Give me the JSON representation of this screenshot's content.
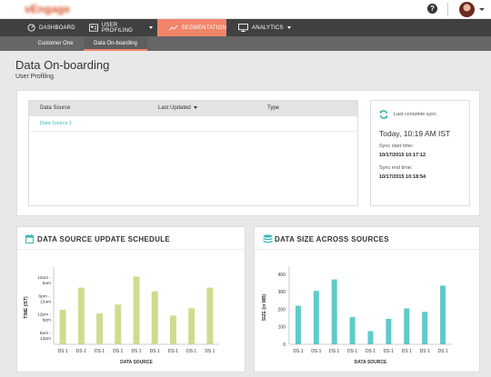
{
  "header": {
    "logo": "vEngage",
    "help_glyph": "?"
  },
  "nav": {
    "items": [
      {
        "label": "DASHBOARD",
        "icon": "speedometer-icon"
      },
      {
        "label": "USER PROFILING",
        "icon": "id-card-icon"
      },
      {
        "label": "SEGMENTATION",
        "icon": "trend-line-icon"
      },
      {
        "label": "ANALYTICS",
        "icon": "monitor-icon"
      }
    ]
  },
  "subnav": {
    "items": [
      {
        "label": "Customer One"
      },
      {
        "label": "Data On-boarding"
      }
    ]
  },
  "page": {
    "title": "Data On-boarding",
    "subtitle": "User Profiling"
  },
  "table": {
    "headers": [
      "Data Source",
      "Last Updated",
      "Type"
    ],
    "rows": [
      {
        "source": "Data Source 1",
        "updated": "",
        "type": ""
      }
    ]
  },
  "sync": {
    "label": "Last complete sync",
    "today": "Today, 10:19 AM IST",
    "start_label": "Sync start time:",
    "start_value": "10/17/2015 10:17:12",
    "end_label": "Sync end time:",
    "end_value": "10/17/2015 10:18:54"
  },
  "colors": {
    "accent": "#f2856a",
    "teal": "#3bb7b5",
    "bar_green": "#cddc8f",
    "bar_teal": "#5ecbc9",
    "nav_bg": "#404040",
    "subnav_bg": "#666666"
  },
  "chart_data": [
    {
      "type": "bar",
      "title": "DATA SOURCE UPDATE SCHEDULE",
      "xlabel": "DATA SOURCE",
      "ylabel": "TIME (IST)",
      "ytick_labels": [
        "12am - 6am",
        "6am - 12pm",
        "12pm - 6pm",
        "6pm - 12am"
      ],
      "ytick_lines": [
        [
          "12am -",
          "6am"
        ],
        [
          "6pm - ",
          "12am"
        ],
        [
          "12pm -",
          "6pm"
        ],
        [
          "6am -",
          "12pm"
        ]
      ],
      "categories": [
        "DS 1",
        "DS 1",
        "DS 1",
        "DS 1",
        "DS 1",
        "DS 1",
        "DS 1",
        "DS 1",
        "DS 1"
      ],
      "values": [
        2.35,
        3.85,
        2.1,
        2.7,
        4.6,
        3.6,
        1.95,
        2.45,
        3.85
      ],
      "ylim": [
        0,
        5
      ]
    },
    {
      "type": "bar",
      "title": "DATA SIZE ACROSS SOURCES",
      "xlabel": "DATA SOURCE",
      "ylabel": "SIZE (in MB)",
      "categories": [
        "DS 1",
        "DS 1",
        "DS 1",
        "DS 1",
        "DS 1",
        "DS 1",
        "DS 1",
        "DS 1",
        "DS 1"
      ],
      "values": [
        220,
        305,
        370,
        155,
        75,
        145,
        205,
        185,
        335
      ],
      "yticks": [
        0,
        100,
        200,
        300,
        400
      ],
      "ylim": [
        0,
        420
      ]
    }
  ]
}
